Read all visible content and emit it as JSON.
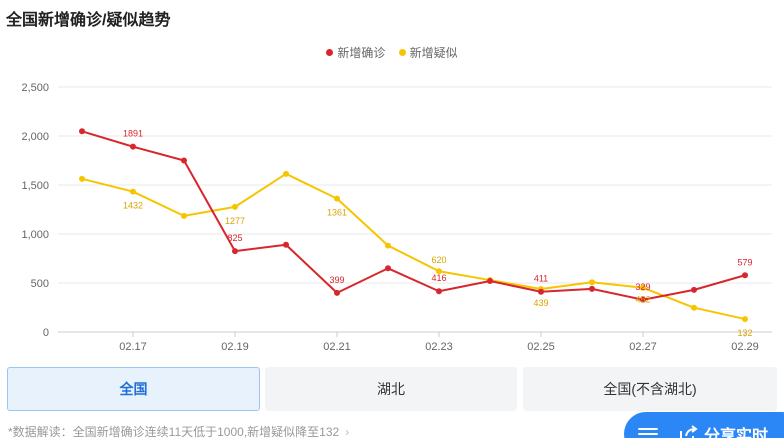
{
  "title": "全国新增确诊/疑似趋势",
  "legend": {
    "confirmed": "新增确诊",
    "suspected": "新增疑似"
  },
  "colors": {
    "confirmed": "#d7262d",
    "suspected": "#f6c500",
    "active_tab": "#1f6fd6",
    "share_button": "#2b86f6"
  },
  "tabs": [
    {
      "label": "全国",
      "active": true
    },
    {
      "label": "湖北",
      "active": false
    },
    {
      "label": "全国(不含湖北)",
      "active": false
    }
  ],
  "note": {
    "text": "*数据解读：全国新增确诊连续11天低于1000,新增疑似降至132",
    "chevron": "›"
  },
  "share": {
    "label": "分享实时"
  },
  "chart_data": {
    "type": "line",
    "x": [
      "02.16",
      "02.17",
      "02.18",
      "02.19",
      "02.20",
      "02.21",
      "02.22",
      "02.23",
      "02.24",
      "02.25",
      "02.26",
      "02.27",
      "02.28",
      "02.29"
    ],
    "x_tick_labels": [
      "02.17",
      "02.19",
      "02.21",
      "02.23",
      "02.25",
      "02.27",
      "02.29"
    ],
    "ylim": [
      0,
      2500
    ],
    "y_ticks": [
      0,
      500,
      1000,
      1500,
      2000,
      2500
    ],
    "y_tick_labels": [
      "0",
      "500",
      "1,000",
      "1,500",
      "2,000",
      "2,500"
    ],
    "grid": true,
    "legend_position": "top-center",
    "series": [
      {
        "name": "新增确诊",
        "values": [
          2048,
          1891,
          1750,
          825,
          890,
          399,
          650,
          416,
          520,
          411,
          440,
          329,
          430,
          579
        ],
        "labels": {
          "1": "1891",
          "3": "825",
          "5": "399",
          "7": "416",
          "9": "411",
          "11": "329",
          "13": "579"
        }
      },
      {
        "name": "新增疑似",
        "values": [
          1563,
          1432,
          1185,
          1277,
          1614,
          1361,
          882,
          620,
          530,
          439,
          508,
          452,
          248,
          132
        ],
        "labels": {
          "1": "1432",
          "3": "1277",
          "5": "1361",
          "7": "620",
          "9": "439",
          "11": "452",
          "13": "132"
        }
      }
    ]
  }
}
